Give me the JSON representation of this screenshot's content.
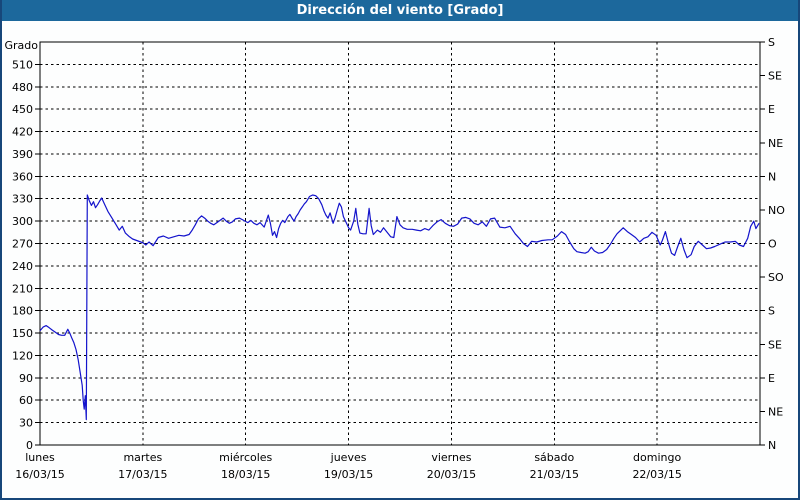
{
  "window": {
    "title": "Dirección del viento [Grado]",
    "titlebar_color": "#1c689c",
    "border_color": "#17477a"
  },
  "chart_data": {
    "type": "line",
    "title": "Dirección del viento [Grado]",
    "ylabel": "Grado",
    "xlabel": "",
    "grid": "dashed",
    "legend_position": "none",
    "y_axis": {
      "min": 0,
      "max": 540,
      "tick_step": 30,
      "tick_labels": [
        510,
        480,
        450,
        420,
        390,
        360,
        330,
        300,
        270,
        240,
        210,
        180,
        150,
        120,
        90,
        60,
        30,
        0
      ]
    },
    "right_axis_compass": [
      {
        "value": 540,
        "label": "S"
      },
      {
        "value": 495,
        "label": "SE"
      },
      {
        "value": 450,
        "label": "E"
      },
      {
        "value": 405,
        "label": "NE"
      },
      {
        "value": 360,
        "label": "N"
      },
      {
        "value": 315,
        "label": "NO"
      },
      {
        "value": 270,
        "label": "O"
      },
      {
        "value": 225,
        "label": "SO"
      },
      {
        "value": 180,
        "label": "S"
      },
      {
        "value": 135,
        "label": "SE"
      },
      {
        "value": 90,
        "label": "E"
      },
      {
        "value": 45,
        "label": "NE"
      },
      {
        "value": 0,
        "label": "N"
      }
    ],
    "x_axis": {
      "unit": "days",
      "range": [
        0,
        7
      ],
      "days": [
        {
          "name": "lunes",
          "date": "16/03/15"
        },
        {
          "name": "martes",
          "date": "17/03/15"
        },
        {
          "name": "miércoles",
          "date": "18/03/15"
        },
        {
          "name": "jueves",
          "date": "19/03/15"
        },
        {
          "name": "viernes",
          "date": "20/03/15"
        },
        {
          "name": "sábado",
          "date": "21/03/15"
        },
        {
          "name": "domingo",
          "date": "22/03/15"
        }
      ]
    },
    "series": [
      {
        "name": "Dirección del viento [Grado]",
        "color": "#1414cc",
        "points": [
          [
            0.0,
            153
          ],
          [
            0.03,
            158
          ],
          [
            0.06,
            160
          ],
          [
            0.09,
            157
          ],
          [
            0.12,
            154
          ],
          [
            0.15,
            151
          ],
          [
            0.18,
            148
          ],
          [
            0.21,
            147
          ],
          [
            0.24,
            147
          ],
          [
            0.27,
            155
          ],
          [
            0.29,
            150
          ],
          [
            0.31,
            143
          ],
          [
            0.33,
            137
          ],
          [
            0.35,
            128
          ],
          [
            0.37,
            115
          ],
          [
            0.39,
            98
          ],
          [
            0.41,
            80
          ],
          [
            0.42,
            60
          ],
          [
            0.43,
            48
          ],
          [
            0.44,
            66
          ],
          [
            0.45,
            34
          ],
          [
            0.46,
            335
          ],
          [
            0.48,
            327
          ],
          [
            0.5,
            321
          ],
          [
            0.52,
            326
          ],
          [
            0.54,
            318
          ],
          [
            0.56,
            322
          ],
          [
            0.58,
            327
          ],
          [
            0.6,
            331
          ],
          [
            0.63,
            322
          ],
          [
            0.66,
            313
          ],
          [
            0.7,
            304
          ],
          [
            0.74,
            295
          ],
          [
            0.77,
            288
          ],
          [
            0.8,
            293
          ],
          [
            0.83,
            284
          ],
          [
            0.87,
            279
          ],
          [
            0.9,
            276
          ],
          [
            0.94,
            274
          ],
          [
            0.98,
            272
          ],
          [
            1.0,
            271
          ],
          [
            1.03,
            268
          ],
          [
            1.06,
            272
          ],
          [
            1.1,
            267
          ],
          [
            1.15,
            278
          ],
          [
            1.2,
            280
          ],
          [
            1.25,
            277
          ],
          [
            1.3,
            279
          ],
          [
            1.35,
            281
          ],
          [
            1.4,
            280
          ],
          [
            1.45,
            282
          ],
          [
            1.48,
            288
          ],
          [
            1.51,
            295
          ],
          [
            1.54,
            303
          ],
          [
            1.57,
            307
          ],
          [
            1.6,
            304
          ],
          [
            1.63,
            300
          ],
          [
            1.66,
            297
          ],
          [
            1.69,
            295
          ],
          [
            1.72,
            298
          ],
          [
            1.75,
            301
          ],
          [
            1.78,
            304
          ],
          [
            1.81,
            300
          ],
          [
            1.84,
            297
          ],
          [
            1.87,
            299
          ],
          [
            1.9,
            303
          ],
          [
            1.94,
            304
          ],
          [
            1.98,
            301
          ],
          [
            2.02,
            298
          ],
          [
            2.05,
            301
          ],
          [
            2.08,
            297
          ],
          [
            2.11,
            295
          ],
          [
            2.14,
            298
          ],
          [
            2.18,
            292
          ],
          [
            2.22,
            308
          ],
          [
            2.24,
            297
          ],
          [
            2.26,
            281
          ],
          [
            2.28,
            286
          ],
          [
            2.3,
            278
          ],
          [
            2.32,
            290
          ],
          [
            2.34,
            297
          ],
          [
            2.36,
            301
          ],
          [
            2.38,
            298
          ],
          [
            2.41,
            306
          ],
          [
            2.43,
            309
          ],
          [
            2.45,
            304
          ],
          [
            2.47,
            300
          ],
          [
            2.49,
            306
          ],
          [
            2.51,
            310
          ],
          [
            2.53,
            315
          ],
          [
            2.55,
            319
          ],
          [
            2.57,
            323
          ],
          [
            2.59,
            326
          ],
          [
            2.62,
            333
          ],
          [
            2.65,
            335
          ],
          [
            2.68,
            334
          ],
          [
            2.71,
            330
          ],
          [
            2.74,
            322
          ],
          [
            2.76,
            314
          ],
          [
            2.78,
            308
          ],
          [
            2.8,
            304
          ],
          [
            2.82,
            311
          ],
          [
            2.85,
            297
          ],
          [
            2.87,
            305
          ],
          [
            2.89,
            315
          ],
          [
            2.91,
            324
          ],
          [
            2.93,
            319
          ],
          [
            2.95,
            306
          ],
          [
            2.98,
            297
          ],
          [
            3.0,
            291
          ],
          [
            3.02,
            288
          ],
          [
            3.05,
            300
          ],
          [
            3.07,
            317
          ],
          [
            3.09,
            296
          ],
          [
            3.11,
            284
          ],
          [
            3.14,
            283
          ],
          [
            3.17,
            283
          ],
          [
            3.2,
            317
          ],
          [
            3.22,
            294
          ],
          [
            3.24,
            282
          ],
          [
            3.28,
            288
          ],
          [
            3.31,
            285
          ],
          [
            3.34,
            291
          ],
          [
            3.37,
            286
          ],
          [
            3.41,
            279
          ],
          [
            3.44,
            278
          ],
          [
            3.47,
            306
          ],
          [
            3.5,
            295
          ],
          [
            3.53,
            291
          ],
          [
            3.57,
            289
          ],
          [
            3.62,
            289
          ],
          [
            3.66,
            288
          ],
          [
            3.7,
            287
          ],
          [
            3.74,
            290
          ],
          [
            3.78,
            288
          ],
          [
            3.82,
            294
          ],
          [
            3.86,
            299
          ],
          [
            3.9,
            302
          ],
          [
            3.94,
            297
          ],
          [
            3.98,
            294
          ],
          [
            4.02,
            293
          ],
          [
            4.06,
            296
          ],
          [
            4.1,
            304
          ],
          [
            4.14,
            305
          ],
          [
            4.18,
            303
          ],
          [
            4.22,
            297
          ],
          [
            4.26,
            295
          ],
          [
            4.3,
            299
          ],
          [
            4.34,
            293
          ],
          [
            4.38,
            303
          ],
          [
            4.42,
            304
          ],
          [
            4.47,
            292
          ],
          [
            4.52,
            291
          ],
          [
            4.57,
            293
          ],
          [
            4.62,
            283
          ],
          [
            4.66,
            277
          ],
          [
            4.7,
            270
          ],
          [
            4.74,
            266
          ],
          [
            4.78,
            273
          ],
          [
            4.83,
            272
          ],
          [
            4.88,
            274
          ],
          [
            4.94,
            275
          ],
          [
            4.98,
            275
          ],
          [
            5.03,
            280
          ],
          [
            5.07,
            286
          ],
          [
            5.11,
            282
          ],
          [
            5.15,
            272
          ],
          [
            5.19,
            263
          ],
          [
            5.22,
            259
          ],
          [
            5.26,
            258
          ],
          [
            5.3,
            257
          ],
          [
            5.33,
            259
          ],
          [
            5.36,
            265
          ],
          [
            5.39,
            260
          ],
          [
            5.43,
            257
          ],
          [
            5.47,
            258
          ],
          [
            5.51,
            262
          ],
          [
            5.55,
            270
          ],
          [
            5.58,
            277
          ],
          [
            5.61,
            283
          ],
          [
            5.64,
            287
          ],
          [
            5.67,
            291
          ],
          [
            5.71,
            286
          ],
          [
            5.75,
            282
          ],
          [
            5.79,
            278
          ],
          [
            5.83,
            272
          ],
          [
            5.87,
            277
          ],
          [
            5.91,
            279
          ],
          [
            5.95,
            285
          ],
          [
            5.99,
            281
          ],
          [
            6.03,
            268
          ],
          [
            6.05,
            274
          ],
          [
            6.08,
            286
          ],
          [
            6.11,
            270
          ],
          [
            6.14,
            257
          ],
          [
            6.17,
            254
          ],
          [
            6.2,
            266
          ],
          [
            6.23,
            277
          ],
          [
            6.26,
            262
          ],
          [
            6.29,
            251
          ],
          [
            6.33,
            255
          ],
          [
            6.36,
            266
          ],
          [
            6.4,
            273
          ],
          [
            6.44,
            268
          ],
          [
            6.48,
            263
          ],
          [
            6.52,
            264
          ],
          [
            6.56,
            266
          ],
          [
            6.61,
            269
          ],
          [
            6.66,
            272
          ],
          [
            6.71,
            272
          ],
          [
            6.76,
            273
          ],
          [
            6.8,
            268
          ],
          [
            6.84,
            266
          ],
          [
            6.88,
            277
          ],
          [
            6.91,
            293
          ],
          [
            6.94,
            300
          ],
          [
            6.96,
            290
          ],
          [
            6.99,
            297
          ]
        ]
      }
    ]
  }
}
